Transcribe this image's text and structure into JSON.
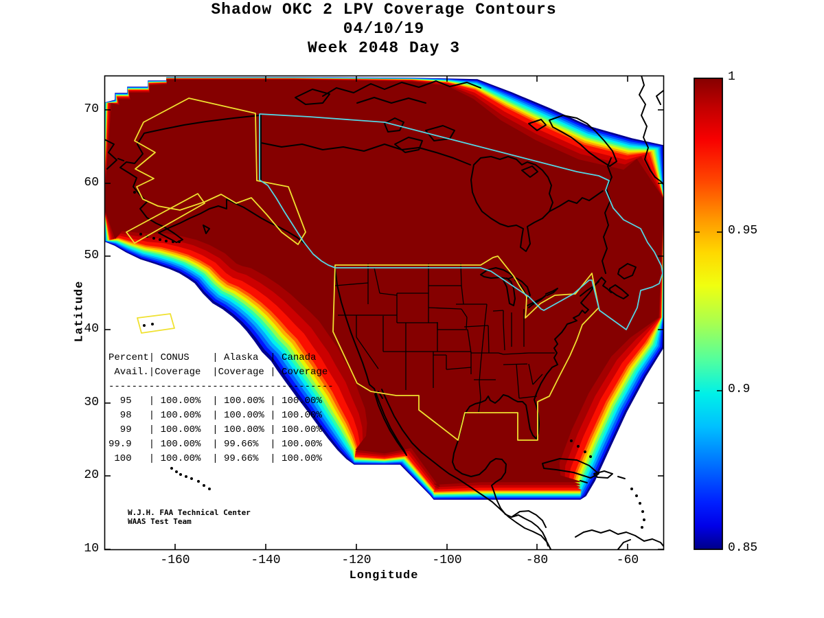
{
  "title": {
    "line1": "Shadow OKC 2 LPV Coverage Contours",
    "line2": "04/10/19",
    "line3": "Week 2048 Day 3"
  },
  "axes": {
    "xlabel": "Longitude",
    "ylabel": "Latitude",
    "x_tick_labels": [
      "-160",
      "-140",
      "-120",
      "-100",
      "-80",
      "-60"
    ],
    "y_tick_labels": [
      "70",
      "60",
      "50",
      "40",
      "30",
      "20",
      "10"
    ]
  },
  "colorbar": {
    "tick_labels": [
      "1",
      "0.95",
      "0.9",
      "0.85"
    ],
    "min": 0.85,
    "max": 1
  },
  "coverage_table": {
    "header_line1": [
      "Percent",
      "CONUS",
      "Alaska",
      "Canada"
    ],
    "header_line2": [
      "Avail.",
      "Coverage",
      "Coverage",
      "Coverage"
    ],
    "rows": [
      [
        "95",
        "100.00%",
        "100.00%",
        "100.00%"
      ],
      [
        "98",
        "100.00%",
        "100.00%",
        "100.00%"
      ],
      [
        "99",
        "100.00%",
        "100.00%",
        "100.00%"
      ],
      [
        "99.9",
        "100.00%",
        "99.66%",
        "100.00%"
      ],
      [
        "100",
        "100.00%",
        "99.66%",
        "100.00%"
      ]
    ]
  },
  "credit": {
    "line1": "W.J.H. FAA Technical Center",
    "line2": "WAAS Test Team"
  },
  "colors": {
    "background": "#FFFFFF",
    "coastline": "#000000",
    "conus_alaska_boundary": "#F0E130",
    "canada_boundary": "#55D6E4",
    "interior_dark_red": "#850000",
    "jet_bands": [
      "#00008F",
      "#0016FF",
      "#0061FF",
      "#00AAFF",
      "#00EEF0",
      "#2FFFA8",
      "#90FF50",
      "#E8F500",
      "#FFB000",
      "#FF5A00"
    ],
    "interior_shades": [
      "#FA0F00",
      "#CC0000",
      "#A40000",
      "#850000"
    ],
    "colorbar_stops": [
      "#850000 0%",
      "#C00000 6%",
      "#F80000 13%",
      "#FF4800 22%",
      "#FF9800 30%",
      "#FFD800 37%",
      "#F0FF10 44%",
      "#A8FF50 52%",
      "#50FFA0 60%",
      "#00F0E8 67%",
      "#00C0FF 74%",
      "#0070FF 82%",
      "#0020FF 90%",
      "#0000E8 95%",
      "#000088 100%"
    ]
  },
  "chart_data": {
    "type": "heatmap",
    "subtype": "filled_contour_coverage_map",
    "title": "Shadow OKC 2 LPV Coverage Contours",
    "date": "04/10/19",
    "gps_week": 2048,
    "gps_day": 3,
    "xlabel": "Longitude",
    "ylabel": "Latitude",
    "xlim": [
      -176,
      -52
    ],
    "ylim": [
      10,
      75
    ],
    "x_ticks": [
      -160,
      -140,
      -120,
      -100,
      -80,
      -60
    ],
    "y_ticks": [
      70,
      60,
      50,
      40,
      30,
      20,
      10
    ],
    "colorbar": {
      "min": 0.85,
      "max": 1.0,
      "ticks": [
        1,
        0.95,
        0.9,
        0.85
      ],
      "colormap": "jet"
    },
    "categories": [
      "95",
      "98",
      "99",
      "99.9",
      "100"
    ],
    "series": [
      {
        "name": "CONUS Coverage",
        "values": [
          100.0,
          100.0,
          100.0,
          100.0,
          100.0
        ]
      },
      {
        "name": "Alaska Coverage",
        "values": [
          100.0,
          100.0,
          100.0,
          99.66,
          99.66
        ]
      },
      {
        "name": "Canada Coverage",
        "values": [
          100.0,
          100.0,
          100.0,
          100.0,
          100.0
        ]
      }
    ],
    "annotations": [
      "W.J.H. FAA Technical Center",
      "WAAS Test Team"
    ],
    "legend_position": "none",
    "grid": false
  }
}
